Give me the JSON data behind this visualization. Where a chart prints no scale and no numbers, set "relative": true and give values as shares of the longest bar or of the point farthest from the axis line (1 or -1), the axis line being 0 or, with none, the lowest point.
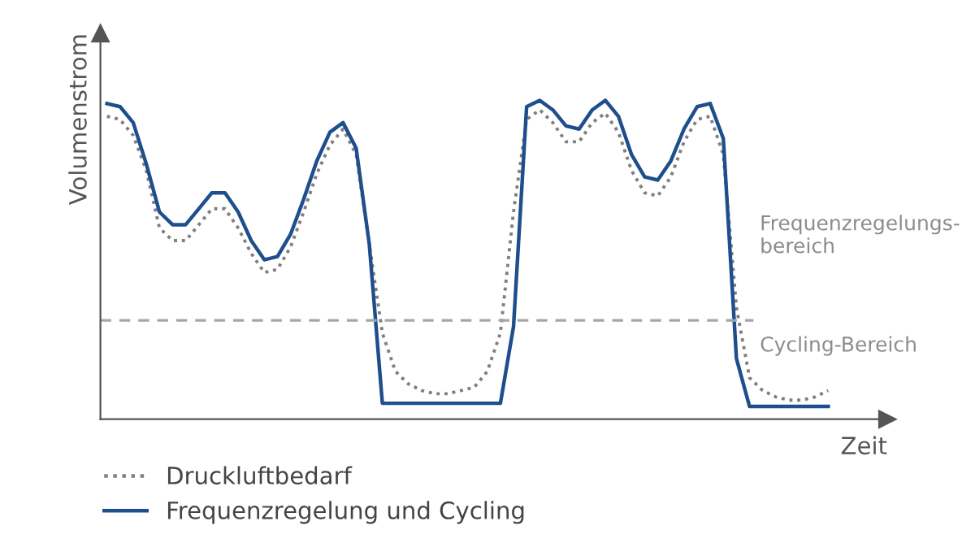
{
  "chart_data": {
    "type": "line",
    "relative": true,
    "xlabel": "Zeit",
    "ylabel": "Volumenstrom",
    "categories": [
      null,
      null,
      null,
      null,
      null,
      null,
      null,
      null,
      null,
      null,
      null,
      null,
      null,
      null,
      null,
      null,
      null,
      null,
      null,
      null,
      null,
      null,
      null,
      null,
      null,
      null,
      null,
      null,
      null,
      null,
      null,
      null,
      null,
      null,
      null,
      null,
      null,
      null,
      null,
      null,
      null,
      null,
      null,
      null,
      null,
      null,
      null,
      null,
      null,
      null,
      null,
      null,
      null,
      null,
      null,
      null
    ],
    "series": [
      {
        "name": "Druckluftbedarf",
        "color": "#7f7f7f",
        "line_style": "dotted",
        "values": [
          0.95,
          0.94,
          0.89,
          0.78,
          0.6,
          0.56,
          0.56,
          0.61,
          0.66,
          0.66,
          0.6,
          0.52,
          0.46,
          0.47,
          0.54,
          0.65,
          0.77,
          0.86,
          0.91,
          0.83,
          0.55,
          0.27,
          0.15,
          0.11,
          0.09,
          0.08,
          0.08,
          0.09,
          0.1,
          0.15,
          0.27,
          0.65,
          0.94,
          0.97,
          0.93,
          0.87,
          0.87,
          0.93,
          0.96,
          0.9,
          0.78,
          0.71,
          0.7,
          0.76,
          0.87,
          0.94,
          0.95,
          0.83,
          0.35,
          0.13,
          0.09,
          0.07,
          0.06,
          0.06,
          0.07,
          0.09
        ]
      },
      {
        "name": "Frequenzregelung und Cycling",
        "color": "#1f4e8c",
        "line_style": "solid",
        "values": [
          0.99,
          0.98,
          0.93,
          0.8,
          0.65,
          0.61,
          0.61,
          0.66,
          0.71,
          0.71,
          0.65,
          0.56,
          0.5,
          0.51,
          0.58,
          0.69,
          0.81,
          0.9,
          0.93,
          0.85,
          0.55,
          0.05,
          0.05,
          0.05,
          0.05,
          0.05,
          0.05,
          0.05,
          0.05,
          0.05,
          0.05,
          0.29,
          0.98,
          1.0,
          0.97,
          0.92,
          0.91,
          0.97,
          1.0,
          0.95,
          0.83,
          0.76,
          0.75,
          0.81,
          0.91,
          0.98,
          0.99,
          0.88,
          0.19,
          0.04,
          0.04,
          0.04,
          0.04,
          0.04,
          0.04,
          0.04
        ]
      }
    ],
    "ref_lines": [
      {
        "axis": "y",
        "value": 0.31,
        "color": "#a6a6a6",
        "line_style": "dashed"
      }
    ],
    "annotations": [
      "Frequenzregelungs-\nbereich",
      "Cycling-Bereich"
    ],
    "legend": "bottom",
    "grid": false
  }
}
